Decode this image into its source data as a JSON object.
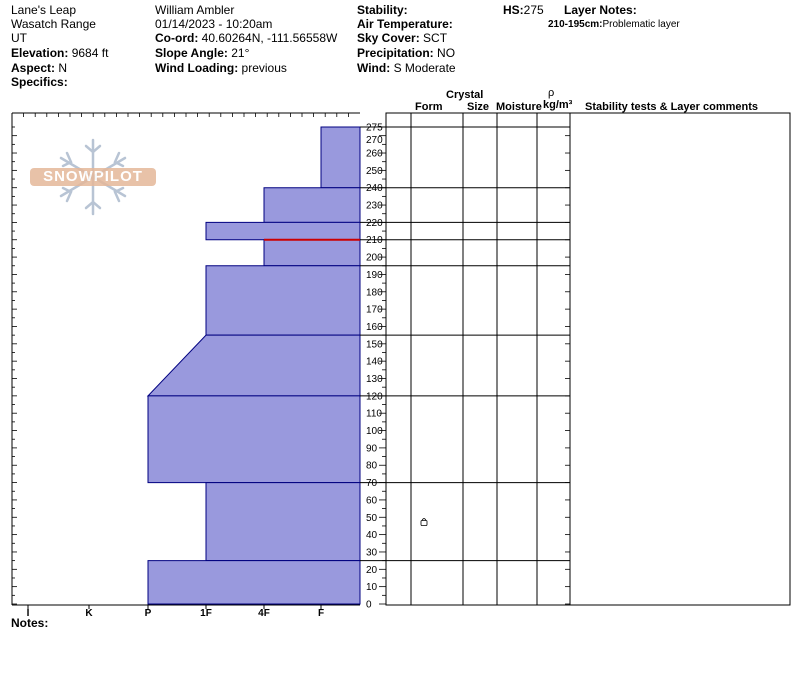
{
  "header": {
    "location": "Lane's Leap",
    "range": "Wasatch Range",
    "state": "UT",
    "elevation_label": "Elevation:",
    "elevation_value": "9684 ft",
    "aspect_label": "Aspect:",
    "aspect_value": "N",
    "specifics_label": "Specifics:",
    "observer": "William Ambler",
    "datetime": "01/14/2023 - 10:20am",
    "coord_label": "Co-ord:",
    "coord_value": "40.60264N, -111.56558W",
    "slope_label": "Slope Angle:",
    "slope_value": "21°",
    "wind_loading_label": "Wind Loading:",
    "wind_loading_value": "previous",
    "stability_label": "Stability:",
    "air_temp_label": "Air Temperature:",
    "sky_label": "Sky Cover:",
    "sky_value": "SCT",
    "precip_label": "Precipitation:",
    "precip_value": "NO",
    "wind_label": "Wind:",
    "wind_value": "S Moderate",
    "hs_label": "HS:",
    "hs_value": "275",
    "layer_notes_label": "Layer Notes:",
    "layer_note_range": "210-195cm:",
    "layer_note_text": "Problematic layer"
  },
  "columns": {
    "crystal": "Crystal",
    "form": "Form",
    "size": "Size",
    "moisture": "Moisture",
    "rho": "ρ",
    "density_unit": "kg/m³",
    "comments": "Stability tests & Layer comments"
  },
  "notes_label": "Notes:",
  "logo_text": "SNOWPILOT",
  "colors": {
    "layer_fill": "#9999dd",
    "layer_stroke": "#000080",
    "critical_layer": "#cc0000"
  },
  "icons": {
    "crystal_form_symbol": "rounded-grains-symbol"
  },
  "chart_data": {
    "type": "area",
    "x_axis": {
      "ticks": [
        "I",
        "K",
        "P",
        "1F",
        "4F",
        "F"
      ]
    },
    "y_axis": {
      "min": 0,
      "max": 275,
      "ticks": [
        0,
        10,
        20,
        30,
        40,
        50,
        60,
        70,
        80,
        90,
        100,
        110,
        120,
        130,
        140,
        150,
        160,
        170,
        180,
        190,
        200,
        210,
        220,
        230,
        240,
        250,
        260,
        270,
        275
      ]
    },
    "layers": [
      {
        "top": 275,
        "bottom": 240,
        "hardness_top": "F",
        "hardness_bottom": "F"
      },
      {
        "top": 240,
        "bottom": 220,
        "hardness_top": "4F",
        "hardness_bottom": "4F"
      },
      {
        "top": 220,
        "bottom": 210,
        "hardness_top": "1F",
        "hardness_bottom": "1F"
      },
      {
        "top": 210,
        "bottom": 195,
        "hardness_top": "4F",
        "hardness_bottom": "4F"
      },
      {
        "top": 195,
        "bottom": 155,
        "hardness_top": "1F",
        "hardness_bottom": "1F"
      },
      {
        "top": 155,
        "bottom": 120,
        "hardness_top": "1F",
        "hardness_bottom": "P"
      },
      {
        "top": 120,
        "bottom": 70,
        "hardness_top": "P",
        "hardness_bottom": "P"
      },
      {
        "top": 70,
        "bottom": 25,
        "hardness_top": "1F",
        "hardness_bottom": "1F"
      },
      {
        "top": 25,
        "bottom": 0,
        "hardness_top": "P",
        "hardness_bottom": "P"
      }
    ],
    "critical_layer_height": 210,
    "layer_boundaries": [
      275,
      240,
      220,
      210,
      195,
      155,
      120,
      70,
      25,
      0
    ],
    "crystal_form_at": 47
  }
}
